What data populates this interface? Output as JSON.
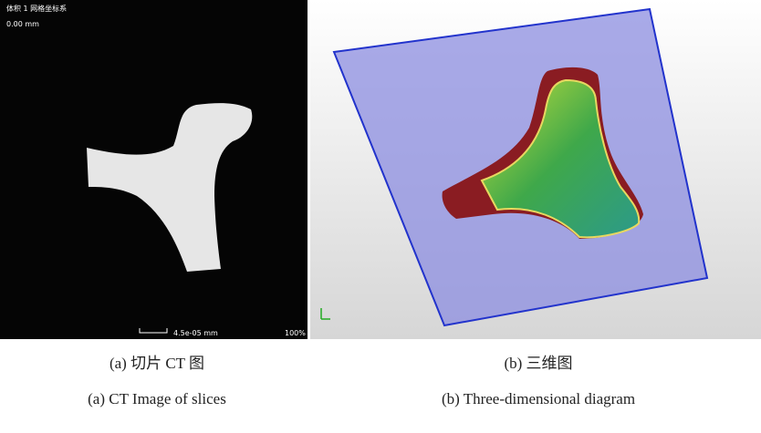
{
  "left_panel": {
    "overlay_title": "体积 1 网格坐标系",
    "overlay_depth": "0.00 mm",
    "scale_label": "4.5e-05 mm",
    "zoom_label": "100%"
  },
  "captions": [
    {
      "zh": "(a) 切片 CT 图",
      "en": "(a) CT Image of slices"
    },
    {
      "zh": "(b) 三维图",
      "en": "(b) Three-dimensional diagram"
    }
  ]
}
